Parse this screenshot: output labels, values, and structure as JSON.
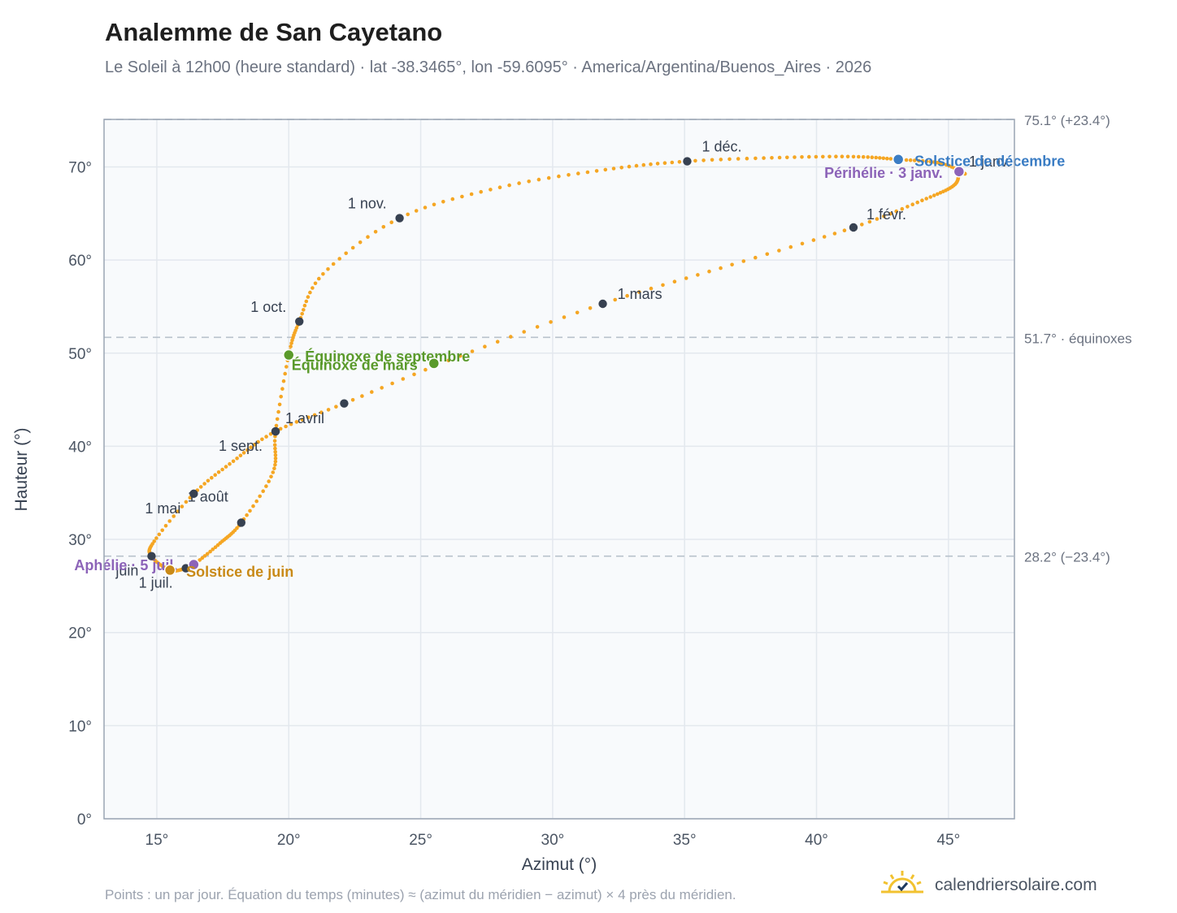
{
  "title": "Analemme de San Cayetano",
  "subtitle": "Le Soleil à 12h00 (heure standard) · lat -38.3465°, lon -59.6095° · America/Argentina/Buenos_Aires · 2026",
  "footer_note": "Points : un par jour. Équation du temps (minutes) ≈ (azimut du méridien − azimut) × 4 près du méridien.",
  "brand": {
    "name": "calendriersolaire.com",
    "icon": "sun-logo-icon"
  },
  "colors": {
    "curve": "#f5a623",
    "month_marker": "#374151",
    "equinox": "#5a9a2b",
    "june_solstice": "#c98a17",
    "december_solstice": "#3b7dc4",
    "apsis": "#8c63b8",
    "reference_line": "#b8c2cc",
    "plot_background": "#f8fafc"
  },
  "chart_data": {
    "type": "scatter",
    "xlabel": "Azimut (°)",
    "ylabel": "Hauteur (°)",
    "xlim": [
      13,
      47.5
    ],
    "ylim": [
      0,
      75.1
    ],
    "xticks": [
      15,
      20,
      25,
      30,
      35,
      40,
      45
    ],
    "yticks": [
      0,
      10,
      20,
      30,
      40,
      50,
      60,
      70
    ],
    "xtick_labels": [
      "15°",
      "20°",
      "25°",
      "30°",
      "35°",
      "40°",
      "45°"
    ],
    "ytick_labels": [
      "0°",
      "10°",
      "20°",
      "30°",
      "40°",
      "50°",
      "60°",
      "70°"
    ],
    "grid": true,
    "reference_lines": [
      {
        "y": 75.1,
        "label": "75.1° (+23.4°)"
      },
      {
        "y": 51.7,
        "label": "51.7° · équinoxes"
      },
      {
        "y": 28.2,
        "label": "28.2° (−23.4°)"
      }
    ],
    "month_markers": [
      {
        "label": "1 janv.",
        "x": 45.4,
        "y": 69.5
      },
      {
        "label": "1 févr.",
        "x": 41.4,
        "y": 63.5
      },
      {
        "label": "1 mars",
        "x": 31.9,
        "y": 55.3
      },
      {
        "label": "1 avril",
        "x": 19.5,
        "y": 41.6
      },
      {
        "label": "",
        "x": 22.1,
        "y": 44.6
      },
      {
        "label": "1 mai",
        "x": 16.4,
        "y": 34.9
      },
      {
        "label": "juin",
        "x": 14.8,
        "y": 28.2
      },
      {
        "label": "1 juil.",
        "x": 16.1,
        "y": 26.9
      },
      {
        "label": "1 août",
        "x": 18.2,
        "y": 31.8
      },
      {
        "label": "1 sept.",
        "x": 19.5,
        "y": 41.6
      },
      {
        "label": "1 oct.",
        "x": 20.4,
        "y": 53.4
      },
      {
        "label": "1 nov.",
        "x": 24.2,
        "y": 64.5
      },
      {
        "label": "1 déc.",
        "x": 35.1,
        "y": 70.6
      }
    ],
    "events": [
      {
        "label": "Solstice de décembre",
        "x": 43.1,
        "y": 70.8,
        "kind": "december_solstice"
      },
      {
        "label": "Périhélie · 3 janv.",
        "x": 45.4,
        "y": 69.5,
        "kind": "apsis"
      },
      {
        "label": "Équinoxe de septembre",
        "x": 20.0,
        "y": 49.8,
        "kind": "equinox"
      },
      {
        "label": "Équinoxe de mars",
        "x": 25.5,
        "y": 48.9,
        "kind": "equinox"
      },
      {
        "label": "Aphélie · 5 juil.",
        "x": 16.4,
        "y": 27.3,
        "kind": "apsis"
      },
      {
        "label": "Solstice de juin",
        "x": 15.5,
        "y": 26.7,
        "kind": "june_solstice"
      }
    ],
    "series": [
      {
        "x": [
          45.4,
          45.2,
          44.0,
          41.4,
          36.8,
          31.9,
          26.5,
          22.1,
          19.5,
          17.9,
          16.4,
          14.9,
          14.8,
          15.5,
          16.1,
          16.4,
          17.4,
          18.2,
          19.4,
          19.5,
          20.0,
          20.4,
          21.3,
          24.2,
          28.0,
          32.0,
          35.1,
          38.6,
          41.4,
          43.1,
          44.7,
          45.6,
          45.4
        ],
        "y": [
          69.5,
          68.0,
          66.4,
          63.5,
          59.5,
          55.3,
          49.7,
          44.6,
          41.6,
          38.4,
          34.9,
          29.8,
          28.2,
          26.7,
          26.9,
          27.3,
          29.6,
          31.8,
          37.2,
          41.6,
          49.8,
          53.4,
          58.5,
          64.5,
          67.8,
          69.7,
          70.6,
          71.0,
          71.1,
          70.8,
          70.4,
          69.3,
          69.5
        ]
      }
    ]
  }
}
